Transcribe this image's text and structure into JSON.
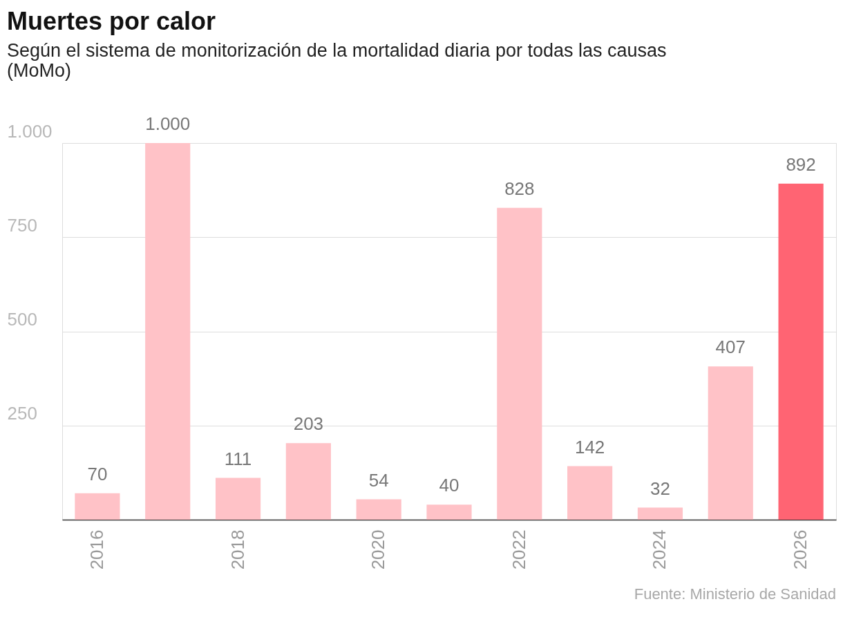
{
  "chart_data": {
    "type": "bar",
    "title": "Muertes por calor",
    "subtitle": "Según el sistema de monitorización de la mortalidad diaria por todas las causas (MoMo)",
    "categories": [
      "2016",
      null,
      "2018",
      null,
      "2020",
      null,
      "2022",
      null,
      "2024",
      null,
      "2026"
    ],
    "values": [
      70,
      1000,
      111,
      203,
      54,
      40,
      828,
      142,
      32,
      407,
      892
    ],
    "colors": [
      "#ffc2c7",
      "#ffc2c7",
      "#ffc2c7",
      "#ffc2c7",
      "#ffc2c7",
      "#ffc2c7",
      "#ffc2c7",
      "#ffc2c7",
      "#ffc2c7",
      "#ffc2c7",
      "#ff6473"
    ],
    "value_labels": [
      "70",
      "1.000",
      "111",
      "203",
      "54",
      "40",
      "828",
      "142",
      "32",
      "407",
      "892"
    ],
    "ylim": [
      0,
      1000
    ],
    "yticks": [
      250,
      500,
      750,
      {
        "value": 1000,
        "label": "1.000"
      }
    ],
    "grid": "y",
    "annotations": [
      "Fuente: Ministerio de Sanidad"
    ]
  }
}
